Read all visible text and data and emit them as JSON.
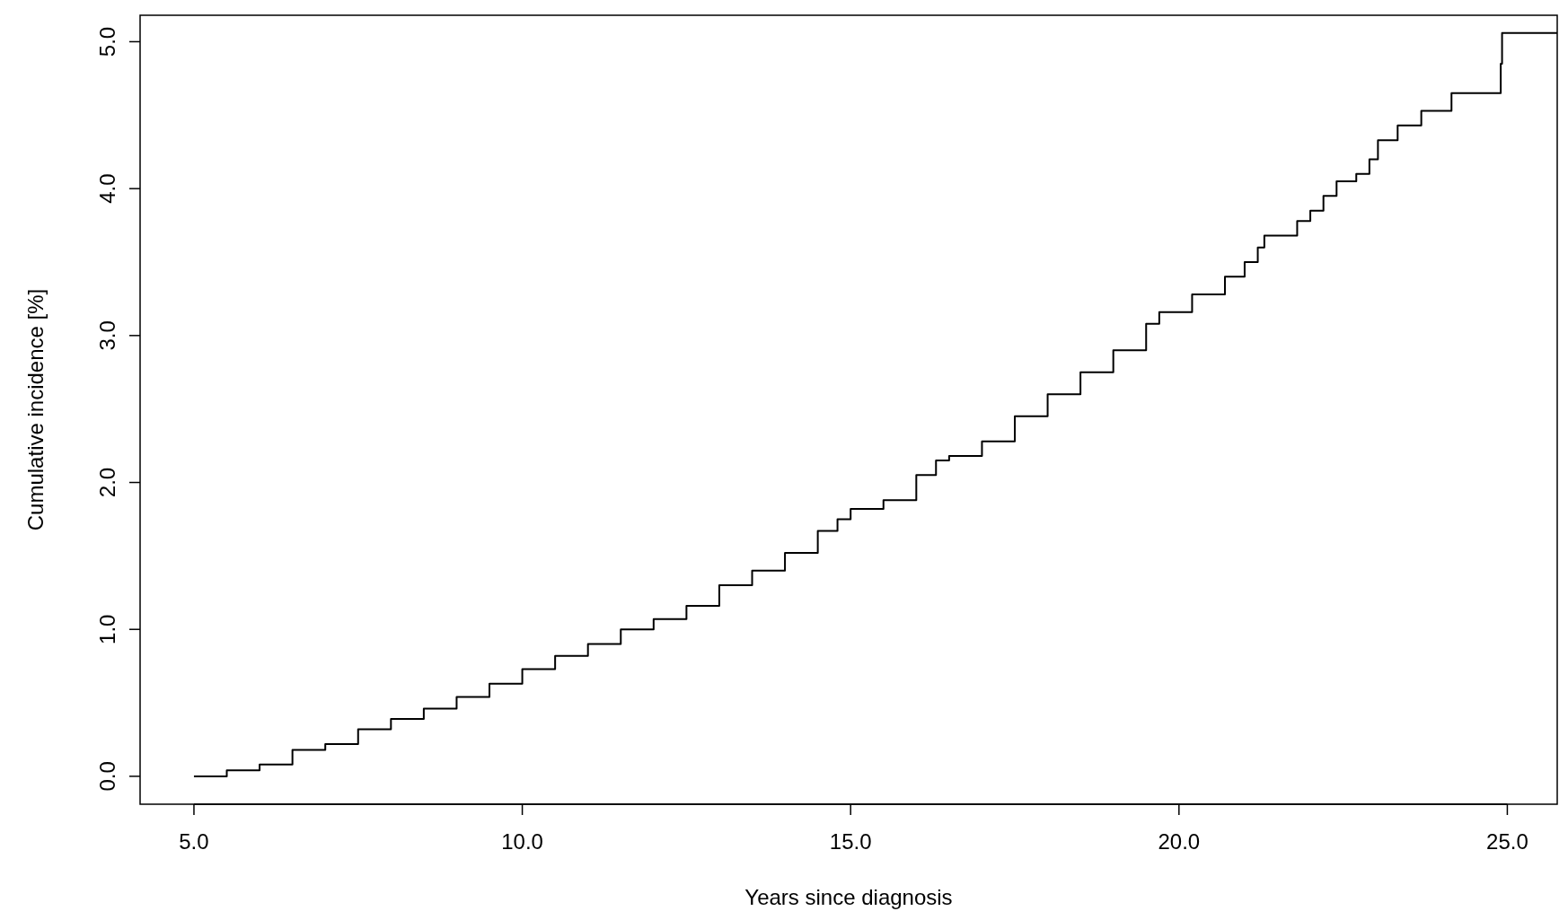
{
  "chart_data": {
    "type": "step",
    "xlabel": "Years since diagnosis",
    "ylabel": "Cumulative incidence [%]",
    "xlim": [
      4.18,
      25.76
    ],
    "ylim": [
      -0.19,
      5.18
    ],
    "xticks": [
      {
        "value": 5,
        "label": "5.0"
      },
      {
        "value": 10,
        "label": "10.0"
      },
      {
        "value": 15,
        "label": "15.0"
      },
      {
        "value": 20,
        "label": "20.0"
      },
      {
        "value": 25,
        "label": "25.0"
      }
    ],
    "yticks": [
      {
        "value": 0,
        "label": "0.0"
      },
      {
        "value": 1,
        "label": "1.0"
      },
      {
        "value": 2,
        "label": "2.0"
      },
      {
        "value": 3,
        "label": "3.0"
      },
      {
        "value": 4,
        "label": "4.0"
      },
      {
        "value": 5,
        "label": "5.0"
      }
    ],
    "grid": false,
    "marker": "none",
    "line_style": "solid",
    "series": [
      {
        "color": "#000000",
        "x": [
          5.0,
          5.5,
          6.0,
          6.5,
          7.0,
          7.5,
          8.0,
          8.5,
          9.0,
          9.5,
          10.0,
          10.5,
          11.0,
          11.5,
          12.0,
          12.5,
          13.0,
          13.5,
          14.0,
          14.5,
          14.8,
          15.0,
          15.5,
          16.0,
          16.3,
          16.5,
          17.0,
          17.5,
          18.0,
          18.5,
          19.0,
          19.5,
          19.7,
          20.2,
          20.7,
          21.0,
          21.2,
          21.3,
          21.8,
          22.0,
          22.2,
          22.4,
          22.7,
          22.9,
          23.03,
          23.33,
          23.69,
          24.15,
          24.9,
          24.92,
          25.76
        ],
        "values": [
          0,
          0.04,
          0.08,
          0.18,
          0.22,
          0.32,
          0.39,
          0.46,
          0.54,
          0.63,
          0.73,
          0.82,
          0.9,
          1.0,
          1.07,
          1.16,
          1.3,
          1.4,
          1.52,
          1.67,
          1.75,
          1.82,
          1.88,
          2.05,
          2.15,
          2.18,
          2.28,
          2.45,
          2.6,
          2.75,
          2.9,
          3.08,
          3.16,
          3.28,
          3.4,
          3.5,
          3.6,
          3.68,
          3.78,
          3.85,
          3.95,
          4.05,
          4.1,
          4.2,
          4.33,
          4.43,
          4.53,
          4.65,
          4.85,
          5.06,
          5.06
        ]
      }
    ]
  }
}
